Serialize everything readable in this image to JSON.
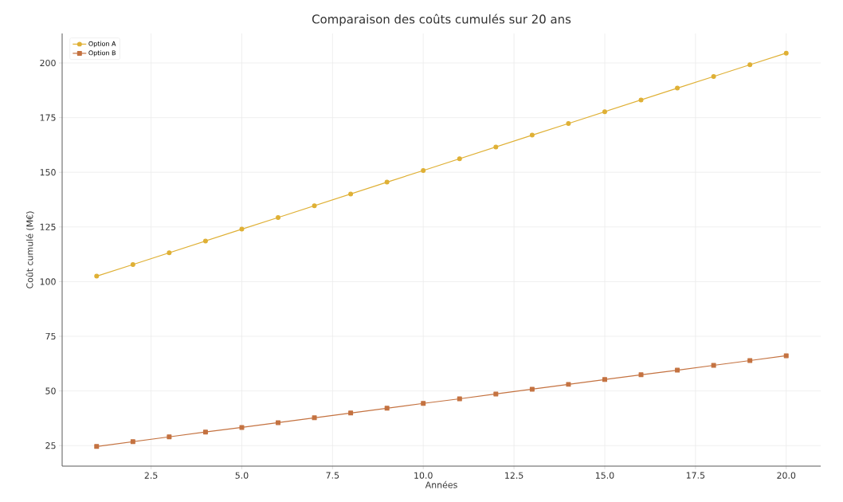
{
  "chart_data": {
    "type": "line",
    "title": "Comparaison des coûts cumulés sur 20 ans",
    "xlabel": "Années",
    "ylabel": "Coût cumulé (M€)",
    "x": [
      1,
      2,
      3,
      4,
      5,
      6,
      7,
      8,
      9,
      10,
      11,
      12,
      13,
      14,
      15,
      16,
      17,
      18,
      19,
      20
    ],
    "series": [
      {
        "name": "Option A",
        "color": "#dfb035",
        "marker": "circle",
        "values": [
          102.5,
          107.8,
          113.2,
          118.6,
          124.0,
          129.3,
          134.7,
          140.1,
          145.5,
          150.8,
          156.2,
          161.6,
          167.0,
          172.3,
          177.7,
          183.1,
          188.5,
          193.8,
          199.2,
          204.5
        ]
      },
      {
        "name": "Option B",
        "color": "#c47240",
        "marker": "square",
        "values": [
          24.6,
          26.8,
          29.0,
          31.2,
          33.3,
          35.5,
          37.7,
          39.9,
          42.1,
          44.3,
          46.4,
          48.6,
          50.8,
          53.0,
          55.2,
          57.4,
          59.5,
          61.7,
          63.9,
          66.1
        ]
      }
    ],
    "xlim": [
      0.05,
      20.95
    ],
    "ylim": [
      15.6,
      213.5
    ],
    "xticks": [
      {
        "value": 2.5,
        "label": "2.5"
      },
      {
        "value": 5,
        "label": "5.0"
      },
      {
        "value": 7.5,
        "label": "7.5"
      },
      {
        "value": 10,
        "label": "10.0"
      },
      {
        "value": 12.5,
        "label": "12.5"
      },
      {
        "value": 15,
        "label": "15.0"
      },
      {
        "value": 17.5,
        "label": "17.5"
      },
      {
        "value": 20,
        "label": "20.0"
      }
    ],
    "yticks": [
      25,
      50,
      75,
      100,
      125,
      150,
      175,
      200
    ],
    "grid": true,
    "legend": "top left",
    "line_style": "solid"
  }
}
